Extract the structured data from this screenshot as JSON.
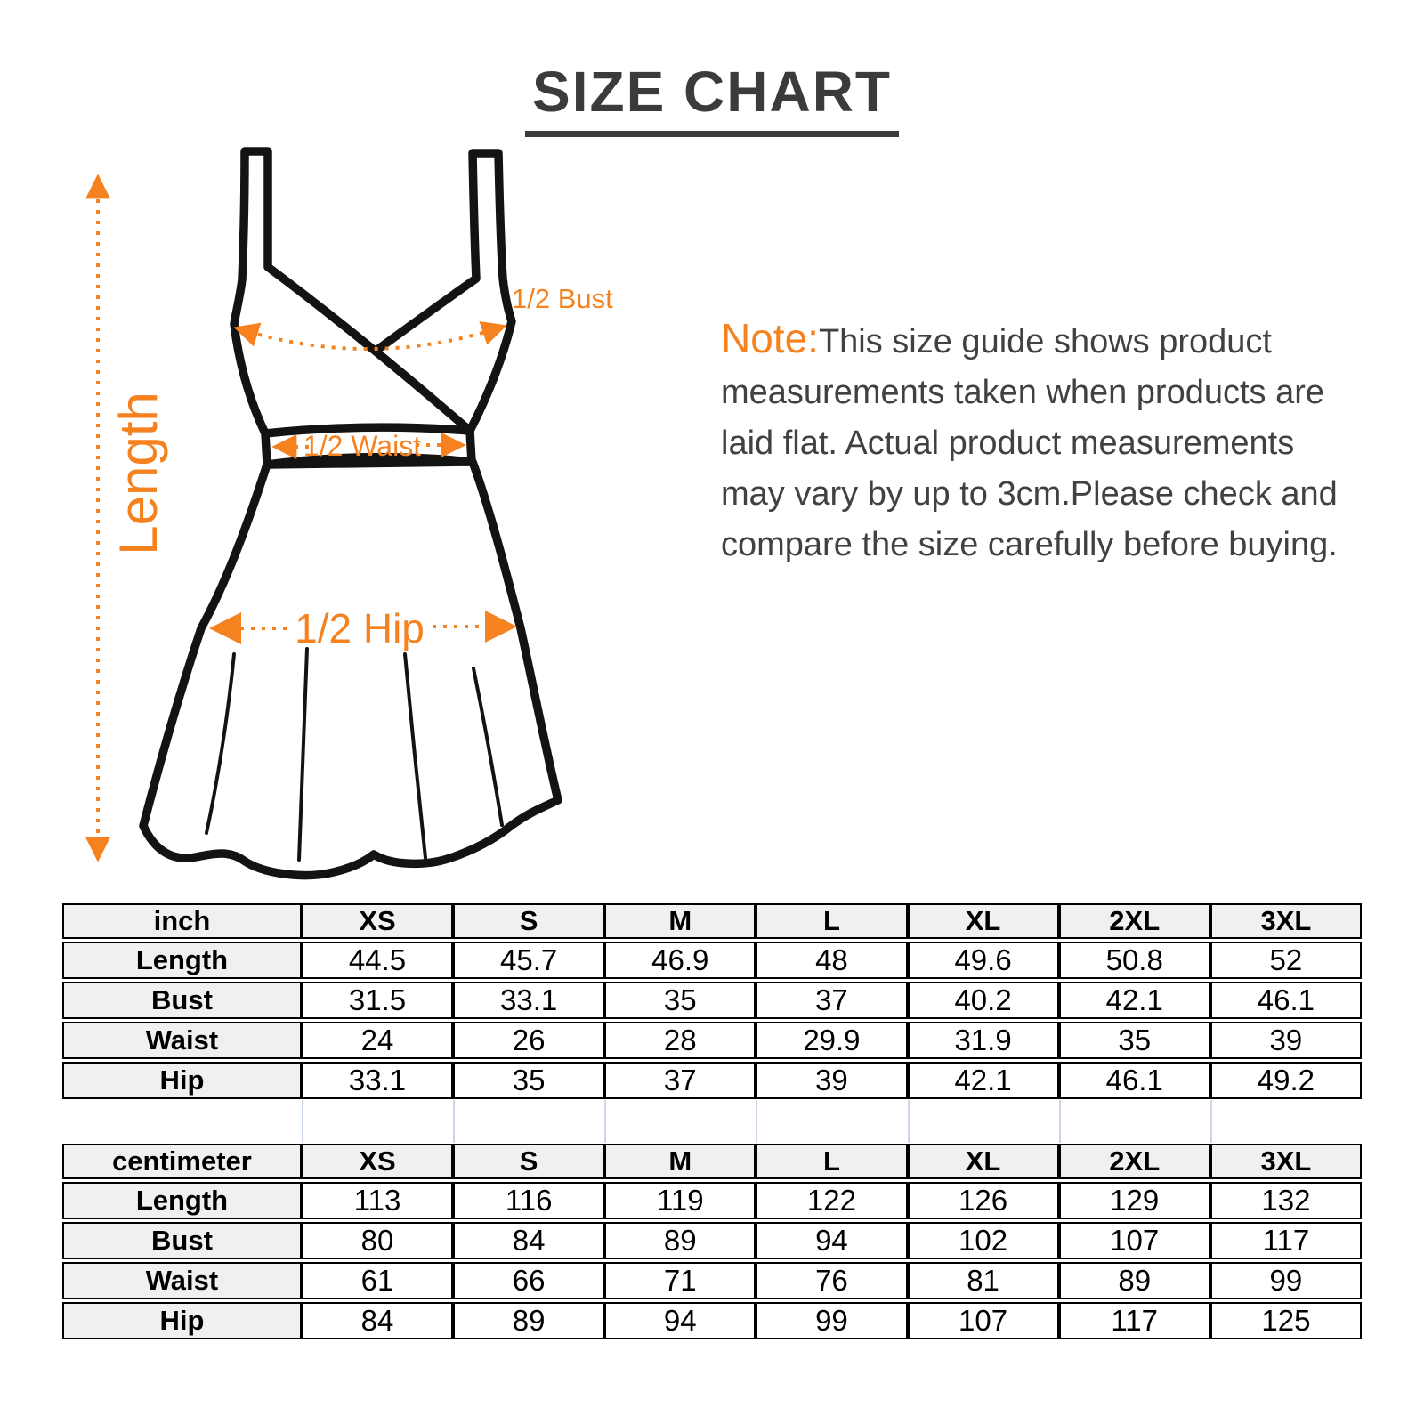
{
  "page": {
    "title": "SIZE CHART"
  },
  "colors": {
    "accent": "#F5821F",
    "title_color": "#3B3B3B",
    "text_color": "#414141",
    "header_bg": "#F0F0F0",
    "spacer_line": "#CBD7E9",
    "line_color": "#131313"
  },
  "diagram": {
    "length_label": "Length",
    "bust_label": "1/2 Bust",
    "waist_label": "1/2 Waist",
    "hip_label": "1/2 Hip"
  },
  "note": {
    "prefix": "Note:",
    "body": "This size guide shows product measurements taken when products are laid flat. Actual product measurements may vary by up to 3cm.Please check and compare the size carefully before buying."
  },
  "tables": [
    {
      "unit_label": "inch",
      "columns": [
        "XS",
        "S",
        "M",
        "L",
        "XL",
        "2XL",
        "3XL"
      ],
      "rows": [
        {
          "label": "Length",
          "values": [
            "44.5",
            "45.7",
            "46.9",
            "48",
            "49.6",
            "50.8",
            "52"
          ]
        },
        {
          "label": "Bust",
          "values": [
            "31.5",
            "33.1",
            "35",
            "37",
            "40.2",
            "42.1",
            "46.1"
          ]
        },
        {
          "label": "Waist",
          "values": [
            "24",
            "26",
            "28",
            "29.9",
            "31.9",
            "35",
            "39"
          ]
        },
        {
          "label": "Hip",
          "values": [
            "33.1",
            "35",
            "37",
            "39",
            "42.1",
            "46.1",
            "49.2"
          ]
        }
      ]
    },
    {
      "unit_label": "centimeter",
      "columns": [
        "XS",
        "S",
        "M",
        "L",
        "XL",
        "2XL",
        "3XL"
      ],
      "rows": [
        {
          "label": "Length",
          "values": [
            "113",
            "116",
            "119",
            "122",
            "126",
            "129",
            "132"
          ]
        },
        {
          "label": "Bust",
          "values": [
            "80",
            "84",
            "89",
            "94",
            "102",
            "107",
            "117"
          ]
        },
        {
          "label": "Waist",
          "values": [
            "61",
            "66",
            "71",
            "76",
            "81",
            "89",
            "99"
          ]
        },
        {
          "label": "Hip",
          "values": [
            "84",
            "89",
            "94",
            "99",
            "107",
            "117",
            "125"
          ]
        }
      ]
    }
  ]
}
